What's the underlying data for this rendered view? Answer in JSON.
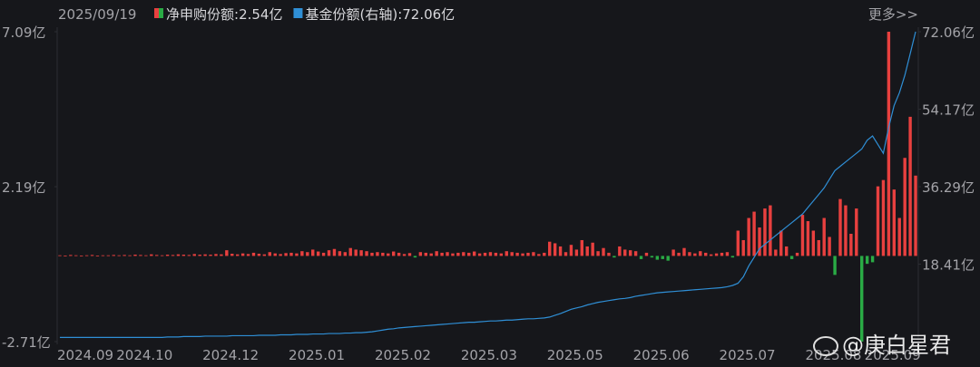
{
  "chart_data": {
    "type": "combo",
    "date": "2025/09/19",
    "more": "更多>>",
    "watermark": "@庚白星君",
    "ylim": [
      -2.71,
      7.09
    ],
    "yticks": [
      {
        "value": 7.09,
        "label": "7.09亿"
      },
      {
        "value": 2.19,
        "label": "2.19亿"
      },
      {
        "value": -2.71,
        "label": "-2.71亿"
      }
    ],
    "y2lim": [
      0.53,
      72.06
    ],
    "y2ticks": [
      {
        "value": 72.06,
        "label": "72.06亿"
      },
      {
        "value": 54.17,
        "label": "54.17亿"
      },
      {
        "value": 36.29,
        "label": "36.29亿"
      },
      {
        "value": 18.41,
        "label": "18.41亿"
      }
    ],
    "categories": [
      "2024.09",
      null,
      null,
      null,
      null,
      null,
      null,
      null,
      null,
      null,
      null,
      "2024.10",
      null,
      null,
      null,
      null,
      null,
      null,
      null,
      null,
      null,
      null,
      null,
      null,
      null,
      null,
      null,
      "2024.12",
      null,
      null,
      null,
      null,
      null,
      null,
      null,
      null,
      null,
      null,
      null,
      null,
      null,
      null,
      null,
      "2025.01",
      null,
      null,
      null,
      null,
      null,
      null,
      null,
      null,
      null,
      null,
      null,
      null,
      null,
      null,
      null,
      "2025.02",
      null,
      null,
      null,
      null,
      null,
      null,
      null,
      null,
      null,
      null,
      null,
      null,
      null,
      null,
      null,
      "2025.03",
      null,
      null,
      null,
      null,
      null,
      null,
      null,
      null,
      null,
      null,
      null,
      null,
      null,
      null,
      null,
      "2025.05",
      null,
      null,
      null,
      null,
      null,
      null,
      null,
      null,
      null,
      null,
      null,
      null,
      null,
      null,
      null,
      "2025.06",
      null,
      null,
      null,
      null,
      null,
      null,
      null,
      null,
      null,
      null,
      null,
      null,
      null,
      null,
      null,
      "2025.07",
      null,
      null,
      null,
      null,
      null,
      null,
      null,
      null,
      null,
      null,
      null,
      null,
      null,
      null,
      null,
      "2025.08",
      null,
      null,
      null,
      null,
      null,
      null,
      null,
      null,
      null,
      null,
      "2025.09",
      null,
      null,
      null,
      null,
      null,
      null,
      null,
      null,
      null
    ],
    "series": [
      {
        "name": "净申购份额",
        "type": "bar",
        "latest_label": ":2.54亿",
        "color": "#e8403f",
        "negative_color": "#2aab45",
        "values": [
          0.02,
          0.01,
          0.03,
          0.02,
          0.01,
          0.02,
          0.03,
          0.01,
          0.02,
          0.02,
          0.03,
          0.02,
          0.03,
          0.02,
          0.04,
          0.03,
          0.02,
          0.05,
          0.03,
          0.02,
          0.04,
          0.03,
          0.05,
          0.04,
          0.03,
          0.06,
          0.04,
          0.05,
          0.04,
          0.06,
          0.05,
          0.18,
          0.07,
          0.05,
          0.08,
          0.06,
          0.1,
          0.07,
          0.05,
          0.12,
          0.08,
          0.06,
          0.09,
          0.1,
          0.08,
          0.15,
          0.12,
          0.2,
          0.14,
          0.1,
          0.18,
          0.22,
          0.15,
          0.12,
          0.25,
          0.2,
          0.18,
          0.15,
          0.1,
          0.12,
          0.1,
          0.08,
          0.14,
          0.1,
          0.06,
          0.09,
          -0.05,
          0.12,
          0.1,
          0.08,
          0.15,
          0.1,
          0.12,
          0.08,
          0.1,
          0.12,
          0.1,
          0.14,
          0.08,
          0.1,
          0.12,
          0.1,
          0.08,
          0.15,
          0.12,
          0.1,
          0.08,
          0.1,
          0.12,
          0.06,
          0.1,
          0.45,
          0.4,
          0.3,
          0.12,
          0.35,
          0.2,
          0.5,
          0.3,
          0.42,
          0.15,
          0.25,
          0.1,
          -0.05,
          0.3,
          0.2,
          0.18,
          0.15,
          -0.1,
          0.1,
          -0.05,
          -0.12,
          -0.1,
          -0.15,
          0.2,
          0.1,
          0.25,
          0.12,
          0.08,
          0.15,
          0.1,
          0.05,
          0.08,
          0.1,
          0.12,
          -0.05,
          0.8,
          0.5,
          1.2,
          1.4,
          0.9,
          1.5,
          1.6,
          0.2,
          0.8,
          0.3,
          -0.1,
          0.1,
          1.3,
          1.1,
          0.8,
          0.5,
          1.2,
          0.6,
          -0.6,
          1.8,
          1.6,
          0.7,
          1.5,
          -2.71,
          -0.25,
          -0.2,
          2.2,
          2.4,
          7.09,
          2.1,
          1.2,
          3.1,
          4.4,
          2.54
        ]
      },
      {
        "name": "基金份额(右轴)",
        "type": "line",
        "axis": "y2",
        "latest_label": ":72.06亿",
        "color": "#2f8fd6",
        "values": [
          1.5,
          1.5,
          1.5,
          1.5,
          1.5,
          1.5,
          1.5,
          1.5,
          1.5,
          1.5,
          1.5,
          1.5,
          1.5,
          1.5,
          1.5,
          1.5,
          1.5,
          1.5,
          1.5,
          1.5,
          1.6,
          1.6,
          1.6,
          1.7,
          1.7,
          1.7,
          1.7,
          1.8,
          1.8,
          1.8,
          1.8,
          1.8,
          1.9,
          1.9,
          1.9,
          1.9,
          1.9,
          2.0,
          2.0,
          2.0,
          2.0,
          2.1,
          2.1,
          2.1,
          2.2,
          2.2,
          2.2,
          2.3,
          2.3,
          2.3,
          2.4,
          2.4,
          2.4,
          2.5,
          2.5,
          2.6,
          2.6,
          2.7,
          2.8,
          3.0,
          3.2,
          3.4,
          3.5,
          3.7,
          3.8,
          3.9,
          4.0,
          4.1,
          4.2,
          4.3,
          4.4,
          4.5,
          4.6,
          4.7,
          4.8,
          4.9,
          5.0,
          5.0,
          5.1,
          5.2,
          5.3,
          5.3,
          5.4,
          5.5,
          5.5,
          5.6,
          5.7,
          5.8,
          5.8,
          5.9,
          6.0,
          6.2,
          6.6,
          7.0,
          7.5,
          8.0,
          8.3,
          8.6,
          9.0,
          9.3,
          9.6,
          9.8,
          10.0,
          10.2,
          10.4,
          10.5,
          10.7,
          11.0,
          11.2,
          11.4,
          11.6,
          11.8,
          11.9,
          12.0,
          12.1,
          12.2,
          12.3,
          12.4,
          12.5,
          12.6,
          12.7,
          12.8,
          12.9,
          13.0,
          13.2,
          13.5,
          14.0,
          15.5,
          18.0,
          20.0,
          22.0,
          23,
          24,
          25,
          26,
          27,
          28,
          29,
          30,
          31.5,
          33,
          34.5,
          36,
          38,
          40,
          41,
          42,
          43,
          44,
          45,
          47,
          48,
          46,
          44,
          50,
          55,
          58,
          62,
          67,
          72.06
        ]
      }
    ]
  }
}
